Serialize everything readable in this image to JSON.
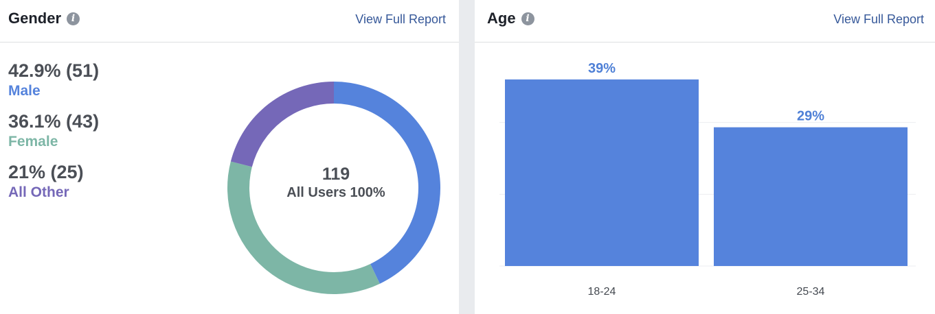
{
  "gender": {
    "title": "Gender",
    "info_icon": "info-icon",
    "report_link": "View Full Report",
    "total_count": "119",
    "total_label": "All Users 100%",
    "stats": [
      {
        "value": "42.9% (51)",
        "label": "Male",
        "color": "#5583dc"
      },
      {
        "value": "36.1% (43)",
        "label": "Female",
        "color": "#7db6a6"
      },
      {
        "value": "21% (25)",
        "label": "All Other",
        "color": "#7568b8"
      }
    ]
  },
  "age": {
    "title": "Age",
    "info_icon": "info-icon",
    "report_link": "View Full Report"
  },
  "chart_data": [
    {
      "type": "pie",
      "categories": [
        "Male",
        "Female",
        "All Other"
      ],
      "values": [
        42.9,
        36.1,
        21
      ],
      "counts": [
        51,
        43,
        25
      ],
      "colors": [
        "#5583dc",
        "#7db6a6",
        "#7568b8"
      ],
      "title": "Gender"
    },
    {
      "type": "bar",
      "categories": [
        "18-24",
        "25-34"
      ],
      "values": [
        39,
        29
      ],
      "value_labels": [
        "39%",
        "29%"
      ],
      "color": "#5583dc",
      "title": "Age",
      "ylim": [
        0,
        45
      ],
      "grid": true
    }
  ]
}
